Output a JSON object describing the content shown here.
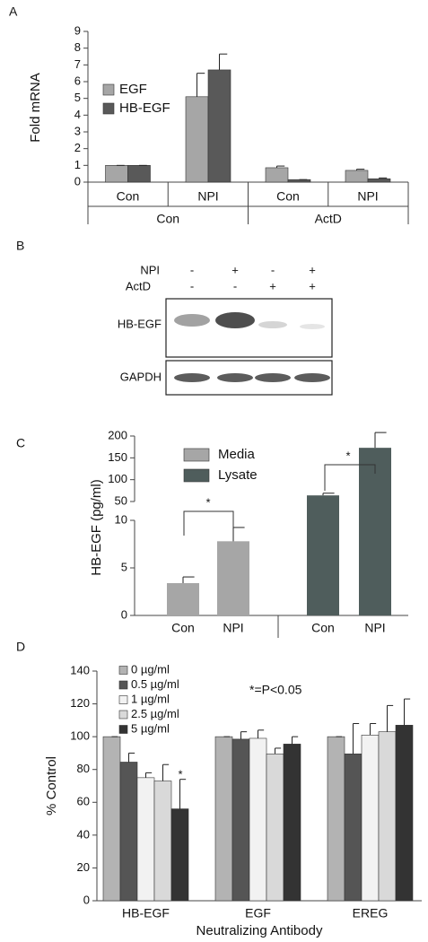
{
  "chart_data": [
    {
      "type": "bar",
      "panel": "A",
      "ylabel": "Fold mRNA",
      "categories": [
        "Con",
        "NPI",
        "Con",
        "NPI"
      ],
      "groups": [
        "Con",
        "ActD"
      ],
      "series": [
        {
          "name": "EGF",
          "color": "#a6a6a6",
          "values": [
            1,
            5.1,
            0.86,
            0.7
          ],
          "errors": [
            0,
            1.4,
            0.1,
            0.07
          ]
        },
        {
          "name": "HB-EGF",
          "color": "#595959",
          "values": [
            1,
            6.7,
            0.15,
            0.2
          ],
          "errors": [
            0,
            0.95,
            0,
            0.05
          ]
        }
      ],
      "ylim": [
        0,
        9
      ],
      "yticks": [
        0,
        1,
        2,
        3,
        4,
        5,
        6,
        7,
        8,
        9
      ]
    },
    {
      "type": "bar",
      "panel": "C",
      "ylabel": "HB-EGF (pg/ml)",
      "categories": [
        "Con",
        "NPI",
        "Con",
        "NPI"
      ],
      "series": [
        {
          "name": "Media",
          "color": "#a6a6a6",
          "values": [
            3.4,
            7.8,
            null,
            null
          ],
          "errors": [
            0.65,
            1.45,
            null,
            null
          ]
        },
        {
          "name": "Lysate",
          "color": "#4f5d5c",
          "values": [
            null,
            null,
            64,
            173
          ],
          "errors": [
            null,
            null,
            5,
            35
          ]
        }
      ],
      "annotations": [
        "*",
        "*"
      ],
      "ylim": [
        0,
        200
      ],
      "axis_break": [
        10,
        50
      ],
      "yticks": [
        0,
        5,
        10,
        50,
        100,
        150,
        200
      ]
    },
    {
      "type": "bar",
      "panel": "D",
      "ylabel": "% Control",
      "xlabel": "Neutralizing Antibody",
      "categories": [
        "HB-EGF",
        "EGF",
        "EREG"
      ],
      "series": [
        {
          "name": "0 µg/ml",
          "color": "#b3b3b3",
          "values": [
            100,
            100,
            100
          ],
          "errors": [
            0,
            0,
            0
          ]
        },
        {
          "name": "0.5 µg/ml",
          "color": "#555555",
          "values": [
            84.5,
            98.5,
            89.5
          ],
          "errors": [
            5.5,
            4.5,
            18.5
          ]
        },
        {
          "name": "1 µg/ml",
          "color": "#f2f2f2",
          "values": [
            75,
            99,
            101
          ],
          "errors": [
            3,
            5,
            7
          ]
        },
        {
          "name": "2.5 µg/ml",
          "color": "#d9d9d9",
          "values": [
            73,
            89.5,
            103
          ],
          "errors": [
            10,
            3.5,
            16
          ]
        },
        {
          "name": "5 µg/ml",
          "color": "#333333",
          "values": [
            56,
            95.5,
            107
          ],
          "errors": [
            18,
            4.5,
            16
          ]
        }
      ],
      "annotations": [
        "*=P<0.05",
        "*"
      ],
      "ylim": [
        0,
        140
      ],
      "yticks": [
        0,
        20,
        40,
        60,
        80,
        100,
        120,
        140
      ]
    }
  ],
  "blot": {
    "panel": "B",
    "rows": [
      {
        "name": "NPI",
        "signs": [
          "-",
          "+",
          "-",
          "+"
        ]
      },
      {
        "name": "ActD",
        "signs": [
          "-",
          "-",
          "+",
          "+"
        ]
      }
    ],
    "bands": [
      "HB-EGF",
      "GAPDH"
    ]
  }
}
